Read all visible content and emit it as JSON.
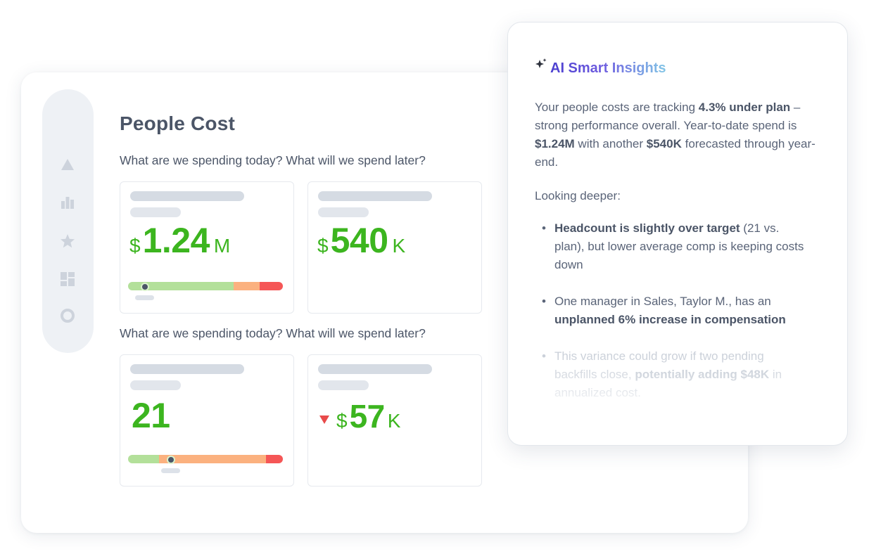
{
  "page": {
    "title": "People Cost",
    "question_1": "What are we spending today? What will we spend later?",
    "question_2": "What are we spending today? What will we spend later?"
  },
  "sidebar": {
    "icons": [
      "triangle-icon",
      "bar-chart-icon",
      "star-icon",
      "layout-grid-icon",
      "circle-icon"
    ]
  },
  "metrics": [
    {
      "currency": "$",
      "value": "1.24",
      "unit": "M",
      "color": "#3cb51f",
      "range_bar": {
        "green": 0.68,
        "orange": 0.17,
        "red": 0.15,
        "marker": 0.1
      }
    },
    {
      "currency": "$",
      "value": "540",
      "unit": "K",
      "color": "#3cb51f"
    },
    {
      "currency": "",
      "value": "21",
      "unit": "",
      "color": "#3cb51f",
      "range_bar": {
        "green": 0.2,
        "orange": 0.69,
        "red": 0.11,
        "marker": 0.27
      }
    },
    {
      "currency": "$",
      "value": "57",
      "unit": "K",
      "color": "#3cb51f",
      "trend": "down",
      "trend_color": "#e84a4a"
    }
  ],
  "insights": {
    "title": "AI Smart Insights",
    "p1_a": "Your people costs are tracking ",
    "p1_b": "4.3% under plan",
    "p1_c": " – strong performance overall. Year-to-date spend is ",
    "p1_d": "$1.24M",
    "p1_e": " with another ",
    "p1_f": "$540K",
    "p1_g": " forecasted through year-end.",
    "p2": "Looking deeper:",
    "b1_bold": "Headcount is slightly over target",
    "b1_rest": " (21 vs. plan), but lower average comp is keeping costs down",
    "b2_a": "One manager in Sales, Taylor M., has an ",
    "b2_bold": "unplanned 6% increase in compensation",
    "b3_a": "This variance could grow if two pending backfills close, ",
    "b3_bold": "potentially adding $48K",
    "b3_c": " in annualized cost."
  },
  "colors": {
    "green": "#3cb51f",
    "bar_green": "#b3e09a",
    "bar_orange": "#fbb17f",
    "bar_red": "#f55656",
    "trend_red": "#e84a4a"
  }
}
